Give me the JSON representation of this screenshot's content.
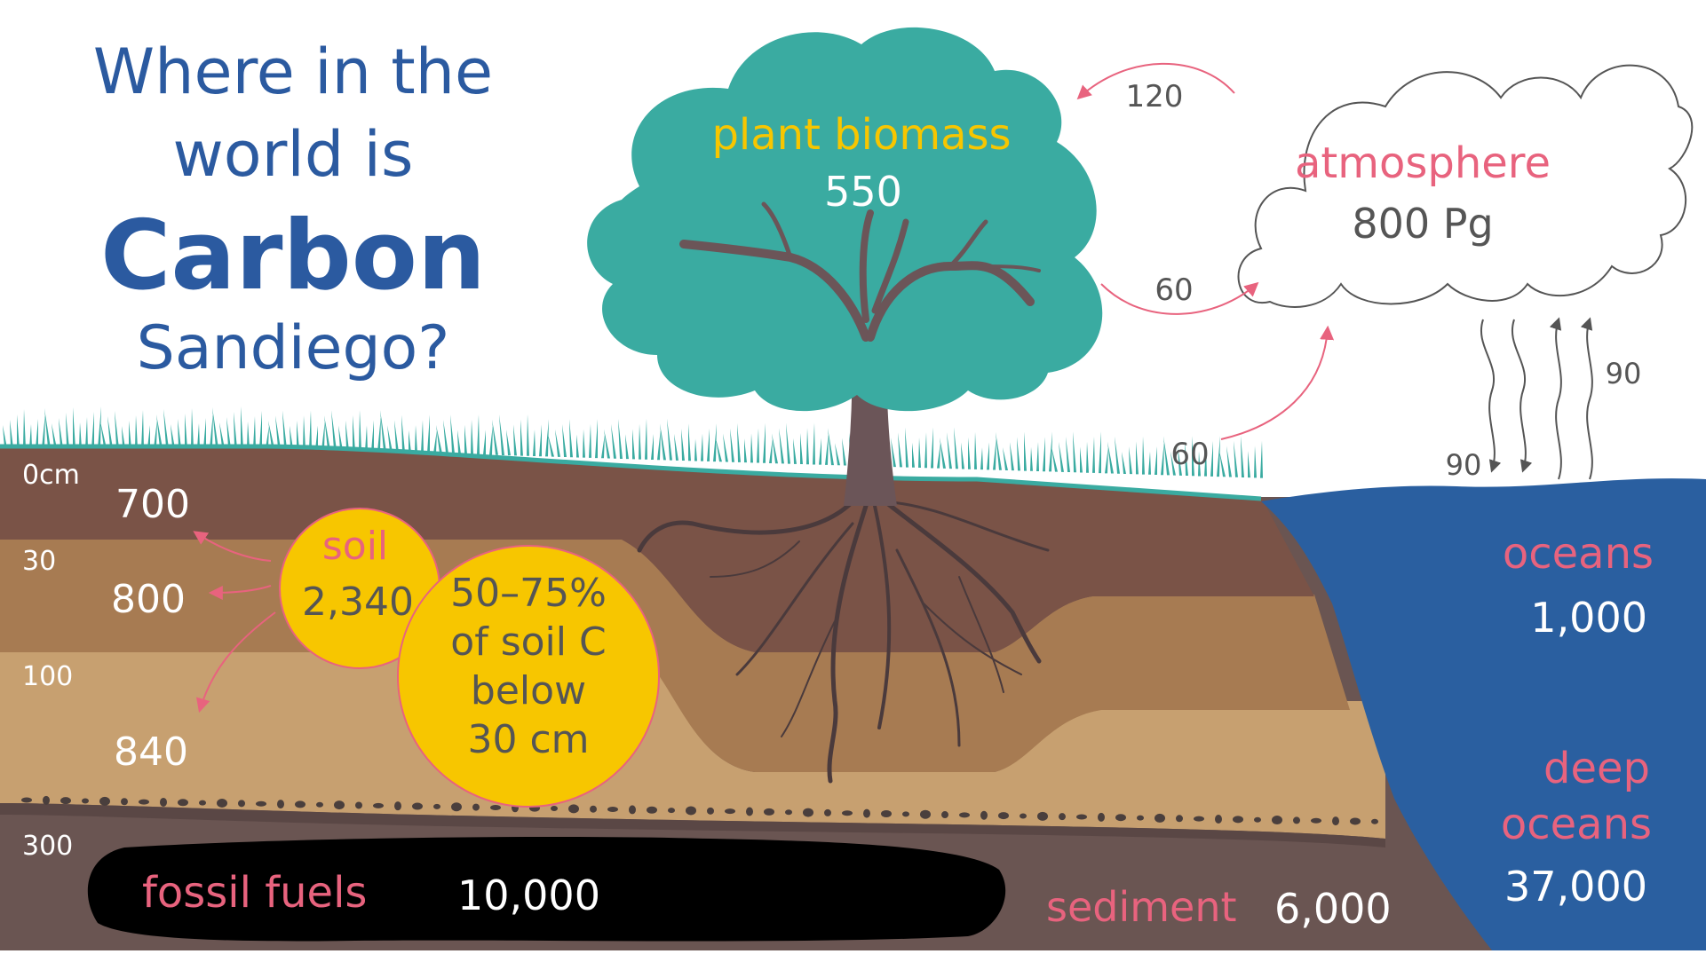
{
  "title": {
    "line1": "Where in the",
    "line2": "world is",
    "line3": "Carbon",
    "line4": "Sandiego?"
  },
  "depths": [
    "0cm",
    "30",
    "100",
    "300"
  ],
  "soil_layers": [
    "700",
    "800",
    "840"
  ],
  "soil": {
    "label": "soil",
    "value": "2,340"
  },
  "soil_note": {
    "line1": "50–75%",
    "line2": "of soil C",
    "line3": "below",
    "line4": "30 cm"
  },
  "plant": {
    "label": "plant biomass",
    "value": "550"
  },
  "atmosphere": {
    "label": "atmosphere",
    "value": "800 Pg"
  },
  "fluxes": {
    "to_plants": "120",
    "from_plants": "60",
    "from_soil": "60",
    "ocean_down": "90",
    "ocean_up": "90"
  },
  "oceans": {
    "label": "oceans",
    "value": "1,000"
  },
  "deep_oceans": {
    "line1": "deep",
    "line2": "oceans",
    "value": "37,000"
  },
  "fossil": {
    "label": "fossil fuels",
    "value": "10,000"
  },
  "sediment": {
    "label": "sediment",
    "value": "6,000"
  },
  "colors": {
    "title_blue": "#2b5aa0",
    "pink": "#e8637e",
    "yellow": "#f7c600",
    "tree_green": "#3aaba1",
    "trunk": "#6b5558",
    "ocean": "#2a5fa0",
    "soil_top": "#7a5347",
    "soil_mid": "#a77b52",
    "soil_low": "#c7a070",
    "bedrock": "#6a5552",
    "fossil": "#000000",
    "gray_text": "#555555"
  }
}
